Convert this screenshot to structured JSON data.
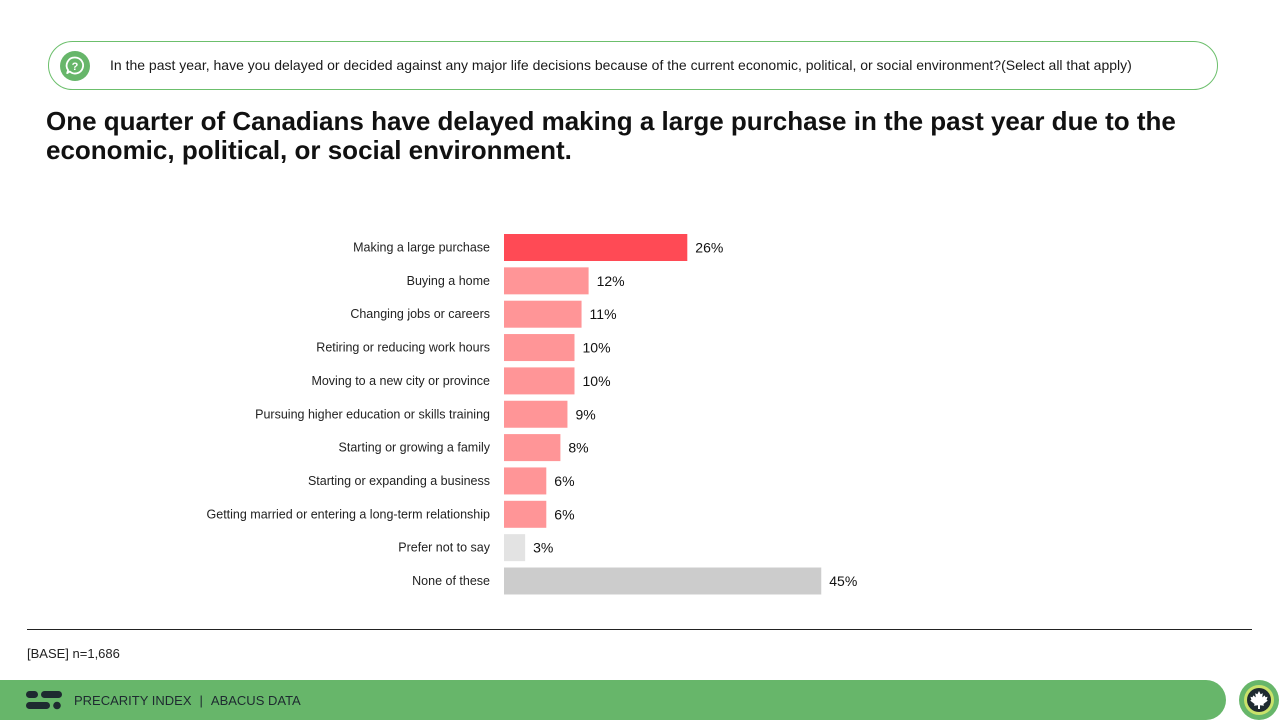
{
  "question": {
    "text": "In the past year, have you delayed or decided against any major life decisions because of the current economic, political, or social environment?(Select all that apply)",
    "icon": "question-chat-icon"
  },
  "headline": "One quarter of Canadians have delayed making a large purchase in the past year due to the economic, political, or social environment.",
  "base_note": "[BASE] n=1,686",
  "footer": {
    "brand": "PRECARITY INDEX",
    "separator": "|",
    "company": "ABACUS DATA",
    "logo_icon": "abacus-logo-icon",
    "badge_icon": "maple-leaf-icon"
  },
  "colors": {
    "highlight": "#ff4a55",
    "standard": "#ff9597",
    "neutral_light": "#e3e3e3",
    "neutral": "#cccccc",
    "accent_green": "#67b66a"
  },
  "chart_data": {
    "type": "bar",
    "orientation": "horizontal",
    "categories": [
      "Making a large purchase",
      "Buying a home",
      "Changing jobs or careers",
      "Retiring or reducing work hours",
      "Moving to a new city or province",
      "Pursuing higher education or skills training",
      "Starting or growing a family",
      "Starting or expanding a business",
      "Getting married or entering a long-term relationship",
      "Prefer not to say",
      "None of these"
    ],
    "values": [
      26,
      12,
      11,
      10,
      10,
      9,
      8,
      6,
      6,
      3,
      45
    ],
    "value_labels": [
      "26%",
      "12%",
      "11%",
      "10%",
      "10%",
      "9%",
      "8%",
      "6%",
      "6%",
      "3%",
      "45%"
    ],
    "bar_colors": [
      "#ff4a55",
      "#ff9597",
      "#ff9597",
      "#ff9597",
      "#ff9597",
      "#ff9597",
      "#ff9597",
      "#ff9597",
      "#ff9597",
      "#e3e3e3",
      "#cccccc"
    ],
    "xlim": [
      0,
      100
    ],
    "grid": false,
    "legend": "none"
  }
}
